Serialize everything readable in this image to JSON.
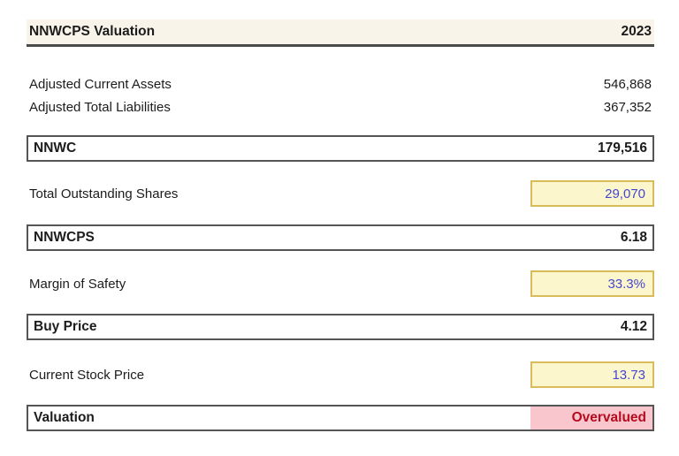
{
  "header": {
    "title": "NNWCPS Valuation",
    "year": "2023"
  },
  "rows": {
    "adjusted_current_assets": {
      "label": "Adjusted Current Assets",
      "value": "546,868"
    },
    "adjusted_total_liabilities": {
      "label": "Adjusted Total Liabilities",
      "value": "367,352"
    },
    "nnwc": {
      "label": "NNWC",
      "value": "179,516"
    },
    "total_outstanding_shares": {
      "label": "Total Outstanding Shares",
      "value": "29,070"
    },
    "nnwcps": {
      "label": "NNWCPS",
      "value": "6.18"
    },
    "margin_of_safety": {
      "label": "Margin of Safety",
      "value": "33.3%"
    },
    "buy_price": {
      "label": "Buy Price",
      "value": "4.12"
    },
    "current_stock_price": {
      "label": "Current Stock Price",
      "value": "13.73"
    },
    "valuation": {
      "label": "Valuation",
      "value": "Overvalued"
    }
  },
  "colors": {
    "header_bg": "#f8f4e9",
    "box_border": "#555555",
    "input_bg": "#fcf6cd",
    "input_border": "#d9bc59",
    "input_text": "#4646cf",
    "status_bg": "#f9c6ce",
    "status_text": "#b60b1e",
    "text": "#1c1c1c"
  }
}
